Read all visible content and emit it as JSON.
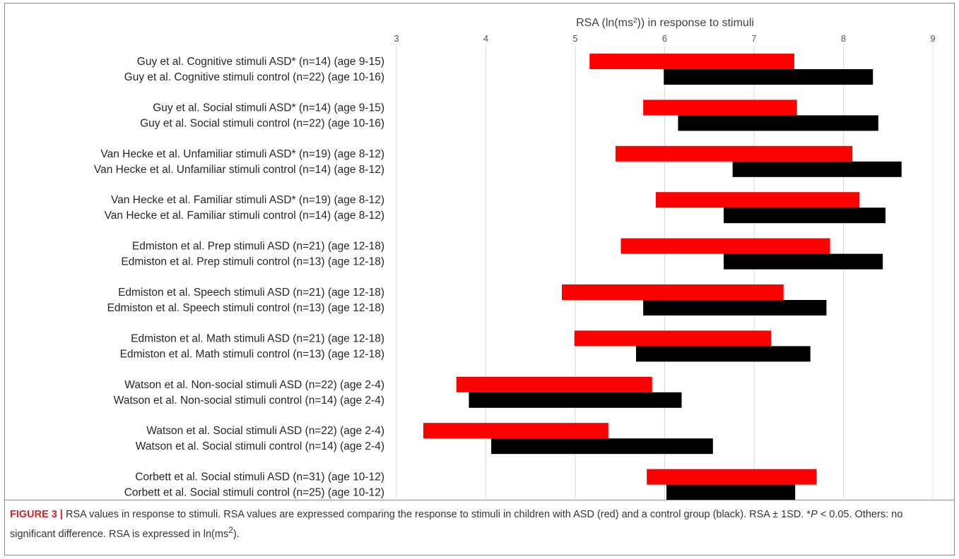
{
  "chart_data": {
    "type": "bar",
    "orientation": "horizontal",
    "subtype": "floating-range",
    "xlabel_html": "RSA (ln(ms<tspan baseline-shift=\"super\" font-size=\"10\">2</tspan>)) in response to stimuli",
    "xlabel": "RSA (ln(ms2)) in response to stimuli",
    "xlim": [
      3,
      9
    ],
    "x_ticks": [
      3,
      4,
      5,
      6,
      7,
      8,
      9
    ],
    "grid": true,
    "colors": {
      "asd": "#ff0000",
      "control": "#000000",
      "grid": "#d9d9d9"
    },
    "groups": [
      {
        "asd": {
          "label": "Guy et al. Cognitive stimuli ASD* (n=14) (age 9-15)",
          "low": 5.16,
          "high": 7.45
        },
        "control": {
          "label": "Guy et al. Cognitive stimuli control (n=22) (age 10-16)",
          "low": 5.99,
          "high": 8.33
        }
      },
      {
        "asd": {
          "label": "Guy et al. Social stimuli ASD* (n=14) (age 9-15)",
          "low": 5.76,
          "high": 7.48
        },
        "control": {
          "label": "Guy et al. Social stimuli control (n=22) (age 10-16)",
          "low": 6.15,
          "high": 8.39
        }
      },
      {
        "asd": {
          "label": "Van Hecke et al. Unfamiliar stimuli ASD* (n=19) (age 8-12)",
          "low": 5.45,
          "high": 8.1
        },
        "control": {
          "label": "Van Hecke et al. Unfamiliar stimuli control (n=14) (age 8-12)",
          "low": 6.76,
          "high": 8.65
        }
      },
      {
        "asd": {
          "label": "Van Hecke et al. Familiar stimuli ASD* (n=19) (age 8-12)",
          "low": 5.9,
          "high": 8.18
        },
        "control": {
          "label": "Van Hecke et al. Familiar stimuli control (n=14) (age 8-12)",
          "low": 6.66,
          "high": 8.47
        }
      },
      {
        "asd": {
          "label": "Edmiston et al. Prep stimuli ASD (n=21) (age 12-18)",
          "low": 5.51,
          "high": 7.85
        },
        "control": {
          "label": "Edmiston et al. Prep stimuli control (n=13) (age 12-18)",
          "low": 6.66,
          "high": 8.44
        }
      },
      {
        "asd": {
          "label": "Edmiston et al. Speech stimuli ASD (n=21) (age 12-18)",
          "low": 4.85,
          "high": 7.33
        },
        "control": {
          "label": "Edmiston et al. Speech stimuli control (n=13) (age 12-18)",
          "low": 5.76,
          "high": 7.81
        }
      },
      {
        "asd": {
          "label": "Edmiston et al. Math stimuli ASD (n=21) (age 12-18)",
          "low": 4.99,
          "high": 7.19
        },
        "control": {
          "label": "Edmiston et al. Math stimuli control (n=13) (age 12-18)",
          "low": 5.68,
          "high": 7.63
        }
      },
      {
        "asd": {
          "label": "Watson et al. Non-social stimuli ASD (n=22) (age 2-4)",
          "low": 3.67,
          "high": 5.86
        },
        "control": {
          "label": "Watson et al. Non-social stimuli control (n=14) (age 2-4)",
          "low": 3.81,
          "high": 6.19
        }
      },
      {
        "asd": {
          "label": "Watson et al. Social stimuli ASD (n=22) (age 2-4)",
          "low": 3.3,
          "high": 5.37
        },
        "control": {
          "label": "Watson et al. Social stimuli control (n=14) (age 2-4)",
          "low": 4.06,
          "high": 6.54
        }
      },
      {
        "asd": {
          "label": "Corbett et al. Social stimuli ASD (n=31) (age 10-12)",
          "low": 5.8,
          "high": 7.7
        },
        "control": {
          "label": "Corbett et al. Social stimuli control (n=25) (age 10-12)",
          "low": 6.02,
          "high": 7.46
        }
      }
    ]
  },
  "caption": {
    "label": "FIGURE 3 |",
    "text_html": "RSA values in response to stimuli. RSA values are expressed comparing the response to stimuli in children with ASD (red) and a control group (black). RSA ± 1SD. *<i>P</i> &lt; 0.05. Others: no significant difference. RSA is expressed in ln(ms<sup>2</sup>).",
    "text": "RSA values in response to stimuli. RSA values are expressed comparing the response to stimuli in children with ASD (red) and a control group (black). RSA ± 1SD. *P < 0.05. Others: no significant difference. RSA is expressed in ln(ms2)."
  }
}
